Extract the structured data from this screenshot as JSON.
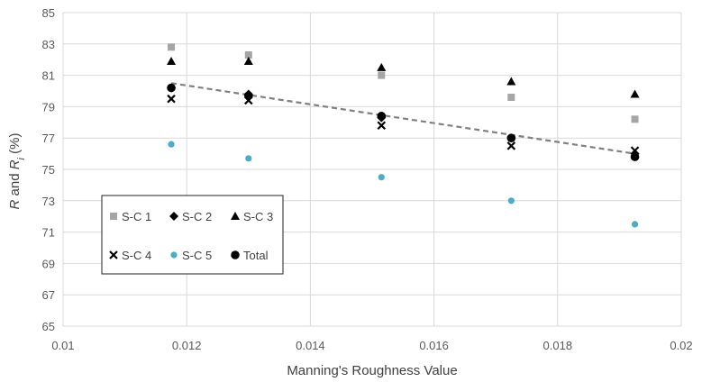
{
  "chart_data": {
    "type": "scatter",
    "xlabel": "Manning's Roughness Value",
    "ylabel": {
      "r": "R",
      "and": " and ",
      "ri": "R",
      "sub": "i",
      "unit": " (%)"
    },
    "xlim": [
      0.01,
      0.02
    ],
    "ylim": [
      65,
      85
    ],
    "x_ticks": [
      "0.01",
      "0.012",
      "0.014",
      "0.016",
      "0.018",
      "0.02"
    ],
    "y_ticks": [
      "65",
      "67",
      "69",
      "71",
      "73",
      "75",
      "77",
      "79",
      "81",
      "83",
      "85"
    ],
    "grid": true,
    "legend_position": "bottom-left",
    "series": [
      {
        "name": "S-C 1",
        "marker": "square",
        "color": "#a5a5a5",
        "x": [
          0.01175,
          0.013,
          0.01515,
          0.01725,
          0.01925
        ],
        "y": [
          82.8,
          82.3,
          81.0,
          79.6,
          78.2
        ]
      },
      {
        "name": "S-C 2",
        "marker": "diamond",
        "color": "#000000",
        "x": [
          0.01175,
          0.013,
          0.01515,
          0.01725,
          0.01925
        ],
        "y": [
          80.2,
          79.8,
          78.3,
          77.0,
          76.0
        ]
      },
      {
        "name": "S-C 3",
        "marker": "triangle",
        "color": "#000000",
        "x": [
          0.01175,
          0.013,
          0.01515,
          0.01725,
          0.01925
        ],
        "y": [
          81.9,
          81.9,
          81.5,
          80.6,
          79.8
        ]
      },
      {
        "name": "S-C 4",
        "marker": "x",
        "color": "#000000",
        "x": [
          0.01175,
          0.013,
          0.01515,
          0.01725,
          0.01925
        ],
        "y": [
          79.5,
          79.4,
          77.8,
          76.5,
          76.2
        ]
      },
      {
        "name": "S-C 5",
        "marker": "circle",
        "color": "#4bacc6",
        "x": [
          0.01175,
          0.013,
          0.01515,
          0.01725,
          0.01925
        ],
        "y": [
          76.6,
          75.7,
          74.5,
          73.0,
          71.5
        ]
      },
      {
        "name": "Total",
        "marker": "circle-large",
        "color": "#000000",
        "x": [
          0.01175,
          0.013,
          0.01515,
          0.01725,
          0.01925
        ],
        "y": [
          80.2,
          79.7,
          78.4,
          77.0,
          75.8
        ]
      }
    ],
    "trendline": {
      "color": "#808080",
      "style": "dashed",
      "x": [
        0.01175,
        0.01925
      ],
      "y": [
        80.5,
        76.0
      ]
    }
  }
}
